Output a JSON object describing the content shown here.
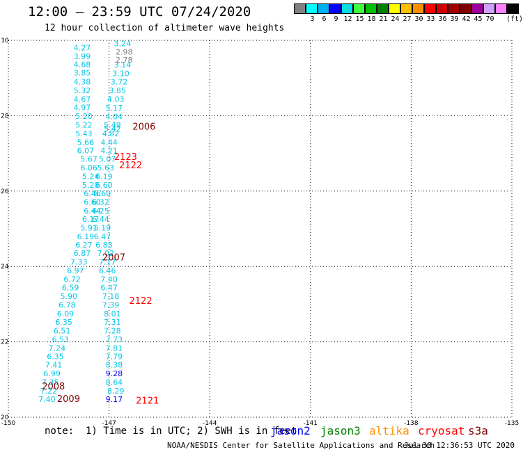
{
  "header": {
    "title": "12:00 — 23:59 UTC 07/24/2020",
    "subtitle": "12 hour collection of altimeter wave heights"
  },
  "colorbar": {
    "colors": [
      "#808080",
      "#00ffff",
      "#00b0f0",
      "#0000ff",
      "#00e0e0",
      "#40ff40",
      "#00c000",
      "#008000",
      "#ffff00",
      "#ffc000",
      "#ff9000",
      "#ff0000",
      "#d00000",
      "#a00000",
      "#800000",
      "#a000a0",
      "#d0a0ff",
      "#ff80ff",
      "#000000"
    ],
    "labels": [
      "3",
      "6",
      "9",
      "12",
      "15",
      "18",
      "21",
      "24",
      "27",
      "30",
      "33",
      "36",
      "39",
      "42",
      "45",
      "70"
    ],
    "unit": "(ft)"
  },
  "chart_data": {
    "type": "scatter",
    "xlim": [
      -150,
      -135
    ],
    "ylim": [
      20,
      30
    ],
    "x_ticks": [
      "-150",
      "-147",
      "-144",
      "-141",
      "-138",
      "-135"
    ],
    "y_ticks": [
      "20",
      "22",
      "24",
      "26",
      "28",
      "30"
    ],
    "grid": true,
    "series": [
      {
        "name": "jason3",
        "color": "#00c8e8",
        "points": [
          {
            "x": -147.8,
            "y": 29.81,
            "v": "4.27"
          },
          {
            "x": -147.8,
            "y": 29.58,
            "v": "3.99"
          },
          {
            "x": -147.8,
            "y": 29.36,
            "v": "4.68"
          },
          {
            "x": -147.8,
            "y": 29.14,
            "v": "3.85"
          },
          {
            "x": -147.8,
            "y": 28.9,
            "v": "4.38"
          },
          {
            "x": -147.8,
            "y": 28.67,
            "v": "5.32"
          },
          {
            "x": -147.8,
            "y": 28.44,
            "v": "4.67"
          },
          {
            "x": -147.8,
            "y": 28.22,
            "v": "4.97"
          },
          {
            "x": -147.75,
            "y": 27.99,
            "v": "5.20"
          },
          {
            "x": -147.75,
            "y": 27.76,
            "v": "5.22"
          },
          {
            "x": -147.75,
            "y": 27.53,
            "v": "5.43"
          },
          {
            "x": -147.7,
            "y": 27.3,
            "v": "5.66"
          },
          {
            "x": -147.7,
            "y": 27.08,
            "v": "6.07"
          },
          {
            "x": -147.6,
            "y": 26.85,
            "v": "5.67"
          },
          {
            "x": -147.6,
            "y": 26.62,
            "v": "6.06"
          },
          {
            "x": -147.55,
            "y": 26.39,
            "v": "5.24"
          },
          {
            "x": -147.55,
            "y": 26.16,
            "v": "5.20"
          },
          {
            "x": -147.5,
            "y": 25.94,
            "v": "6.46"
          },
          {
            "x": -147.5,
            "y": 25.71,
            "v": "6.60"
          },
          {
            "x": -147.5,
            "y": 25.48,
            "v": "6.44"
          },
          {
            "x": -147.55,
            "y": 25.26,
            "v": "6.17"
          },
          {
            "x": -147.6,
            "y": 25.03,
            "v": "5.91"
          },
          {
            "x": -147.7,
            "y": 24.8,
            "v": "6.19"
          },
          {
            "x": -147.75,
            "y": 24.58,
            "v": "6.27"
          },
          {
            "x": -147.8,
            "y": 24.35,
            "v": "6.87"
          },
          {
            "x": -147.9,
            "y": 24.12,
            "v": "7.33"
          },
          {
            "x": -148.0,
            "y": 23.89,
            "v": "6.97"
          },
          {
            "x": -148.1,
            "y": 23.66,
            "v": "6.72"
          },
          {
            "x": -148.15,
            "y": 23.44,
            "v": "6.59"
          },
          {
            "x": -148.2,
            "y": 23.21,
            "v": "5.90"
          },
          {
            "x": -148.25,
            "y": 22.98,
            "v": "6.78"
          },
          {
            "x": -148.3,
            "y": 22.75,
            "v": "6.09"
          },
          {
            "x": -148.35,
            "y": 22.53,
            "v": "6.35"
          },
          {
            "x": -148.4,
            "y": 22.3,
            "v": "6.51"
          },
          {
            "x": -148.45,
            "y": 22.07,
            "v": "6.53"
          },
          {
            "x": -148.55,
            "y": 21.84,
            "v": "7.24"
          },
          {
            "x": -148.6,
            "y": 21.61,
            "v": "6.35"
          },
          {
            "x": -148.65,
            "y": 21.39,
            "v": "7.41"
          },
          {
            "x": -148.7,
            "y": 21.16,
            "v": "6.99"
          },
          {
            "x": -148.75,
            "y": 20.93,
            "v": "7.35"
          },
          {
            "x": -148.8,
            "y": 20.7,
            "v": "7.22"
          },
          {
            "x": -148.85,
            "y": 20.48,
            "v": "7.40"
          },
          {
            "x": -146.6,
            "y": 29.92,
            "v": "3.24"
          },
          {
            "x": -146.6,
            "y": 29.35,
            "v": "3.14"
          },
          {
            "x": -146.65,
            "y": 29.12,
            "v": "3.10"
          },
          {
            "x": -146.7,
            "y": 28.9,
            "v": "3.72"
          },
          {
            "x": -146.75,
            "y": 28.67,
            "v": "3.85"
          },
          {
            "x": -146.8,
            "y": 28.44,
            "v": "4.03"
          },
          {
            "x": -146.85,
            "y": 28.21,
            "v": "5.17"
          },
          {
            "x": -146.85,
            "y": 27.98,
            "v": "4.04"
          },
          {
            "x": -146.9,
            "y": 27.76,
            "v": "5.49"
          },
          {
            "x": -146.9,
            "y": 27.66,
            "v": "5.42"
          },
          {
            "x": -146.95,
            "y": 27.53,
            "v": "4.82"
          },
          {
            "x": -147.0,
            "y": 27.3,
            "v": "4.44"
          },
          {
            "x": -147.0,
            "y": 27.08,
            "v": "4.21"
          },
          {
            "x": -147.05,
            "y": 26.85,
            "v": "5.07"
          },
          {
            "x": -147.1,
            "y": 26.62,
            "v": "5.63"
          },
          {
            "x": -147.15,
            "y": 26.39,
            "v": "6.19"
          },
          {
            "x": -147.15,
            "y": 26.16,
            "v": "6.60"
          },
          {
            "x": -147.2,
            "y": 25.94,
            "v": "6.60"
          },
          {
            "x": -147.25,
            "y": 25.71,
            "v": "6.32"
          },
          {
            "x": -147.25,
            "y": 25.48,
            "v": "6.25"
          },
          {
            "x": -147.25,
            "y": 25.26,
            "v": "6.44"
          },
          {
            "x": -147.2,
            "y": 25.03,
            "v": "6.19"
          },
          {
            "x": -147.2,
            "y": 24.8,
            "v": "6.47"
          },
          {
            "x": -147.15,
            "y": 24.58,
            "v": "6.83"
          },
          {
            "x": -147.1,
            "y": 24.35,
            "v": "7.02"
          },
          {
            "x": -147.05,
            "y": 24.12,
            "v": "7.17"
          },
          {
            "x": -147.05,
            "y": 23.89,
            "v": "6.46"
          },
          {
            "x": -147.0,
            "y": 23.66,
            "v": "7.40"
          },
          {
            "x": -147.0,
            "y": 23.44,
            "v": "6.47"
          },
          {
            "x": -146.95,
            "y": 23.21,
            "v": "7.18"
          },
          {
            "x": -146.95,
            "y": 22.98,
            "v": "7.39"
          },
          {
            "x": -146.9,
            "y": 22.75,
            "v": "8.01"
          },
          {
            "x": -146.9,
            "y": 22.53,
            "v": "7.31"
          },
          {
            "x": -146.9,
            "y": 22.3,
            "v": "7.28"
          },
          {
            "x": -146.85,
            "y": 22.07,
            "v": "7.73"
          },
          {
            "x": -146.85,
            "y": 21.84,
            "v": "7.81"
          },
          {
            "x": -146.85,
            "y": 21.61,
            "v": "7.79"
          },
          {
            "x": -146.85,
            "y": 21.39,
            "v": "8.38"
          },
          {
            "x": -146.85,
            "y": 20.93,
            "v": "8.64"
          },
          {
            "x": -146.8,
            "y": 20.7,
            "v": "8.29"
          }
        ]
      },
      {
        "name": "jason3",
        "color": "#808080",
        "points": [
          {
            "x": -146.55,
            "y": 29.7,
            "v": "2.98"
          },
          {
            "x": -146.55,
            "y": 29.48,
            "v": "2.78"
          }
        ]
      },
      {
        "name": "jason3",
        "color": "#0000ff",
        "points": [
          {
            "x": -146.85,
            "y": 21.16,
            "v": "9.28"
          },
          {
            "x": -146.85,
            "y": 20.48,
            "v": "9.17"
          }
        ]
      }
    ],
    "hour_labels": [
      {
        "x": -146.3,
        "y": 27.72,
        "v": "2006",
        "color": "#800000"
      },
      {
        "x": -146.85,
        "y": 26.92,
        "v": "2123",
        "color": "#ff0000"
      },
      {
        "x": -146.7,
        "y": 26.7,
        "v": "2122",
        "color": "#ff0000"
      },
      {
        "x": -147.2,
        "y": 24.25,
        "v": "2007",
        "color": "#800000"
      },
      {
        "x": -146.4,
        "y": 23.1,
        "v": "2122",
        "color": "#ff0000"
      },
      {
        "x": -149.0,
        "y": 20.83,
        "v": "2008",
        "color": "#800000"
      },
      {
        "x": -148.55,
        "y": 20.5,
        "v": "2009",
        "color": "#800000"
      },
      {
        "x": -146.2,
        "y": 20.45,
        "v": "2121",
        "color": "#ff0000"
      }
    ]
  },
  "footer": {
    "note": "note:  1) Time is in UTC; 2) SWH is in feet",
    "legend": [
      {
        "label": "jason2",
        "color": "#0000ff"
      },
      {
        "label": "jason3",
        "color": "#008000"
      },
      {
        "label": "altika",
        "color": "#ff9000"
      },
      {
        "label": "cryosat",
        "color": "#ff0000"
      },
      {
        "label": "s3a",
        "color": "#800000"
      }
    ],
    "credit": "NOAA/NESDIS Center for Satellite Applications and Research",
    "timestamp": "Jul 30 12:36:53 UTC 2020"
  }
}
